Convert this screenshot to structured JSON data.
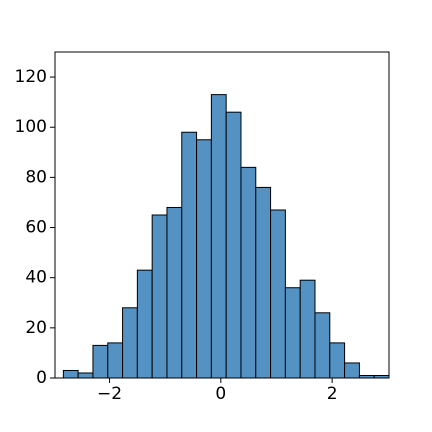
{
  "chart_data": {
    "type": "histogram",
    "bins": [
      -2.83,
      -2.564,
      -2.298,
      -2.032,
      -1.766,
      -1.5,
      -1.234,
      -0.968,
      -0.702,
      -0.436,
      -0.17,
      0.096,
      0.362,
      0.628,
      0.894,
      1.16,
      1.426,
      1.692,
      1.958,
      2.224,
      2.49,
      2.756,
      3.022
    ],
    "values": [
      3,
      2,
      13,
      14,
      28,
      43,
      65,
      68,
      98,
      95,
      113,
      106,
      84,
      76,
      67,
      36,
      39,
      26,
      14,
      6,
      1,
      1
    ],
    "color": "#5492c4",
    "xlim": [
      -2.98,
      3.022
    ],
    "ylim": [
      0,
      130
    ],
    "xticks": [
      {
        "value": -2,
        "label": "−2"
      },
      0,
      2
    ],
    "yticks": [
      0,
      20,
      40,
      60,
      80,
      100,
      120
    ],
    "grid": false
  }
}
